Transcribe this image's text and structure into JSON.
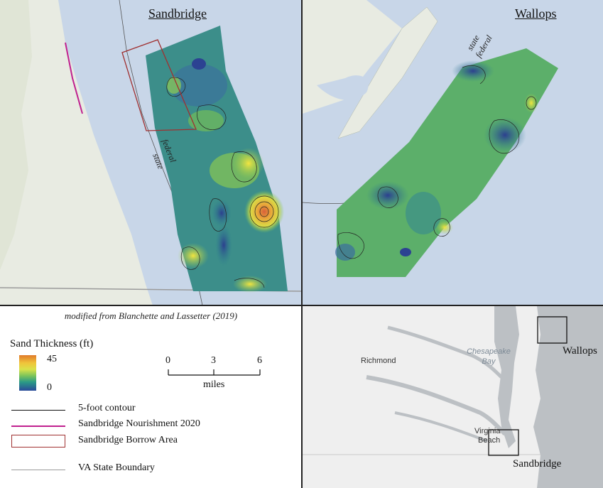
{
  "sandbridge_panel": {
    "title": "Sandbridge",
    "label_state": "state",
    "label_federal": "federal"
  },
  "wallops_panel": {
    "title": "Wallops",
    "label_state": "state",
    "label_federal": "federal"
  },
  "citation": "modified from Blanchette and Lassetter (2019)",
  "legend": {
    "ramp_title": "Sand Thickness (ft)",
    "ramp_max": "45",
    "ramp_min": "0",
    "scale_ticks": [
      "0",
      "3",
      "6"
    ],
    "scale_unit": "miles",
    "items": [
      {
        "label": "5-foot contour",
        "color": "#111111"
      },
      {
        "label": "Sandbridge Nourishment 2020",
        "color": "#c0218f"
      },
      {
        "label": "Sandbridge Borrow Area",
        "color": "#a03030"
      },
      {
        "label": "VA State Boundary",
        "color": "#9a9a9a"
      }
    ]
  },
  "locator_map": {
    "richmond": "Richmond",
    "chesapeake": "Chesapeake",
    "bay": "Bay",
    "virginia": "Virginia",
    "beach": "Beach",
    "wallops": "Wallops",
    "sandbridge": "Sandbridge"
  },
  "colors": {
    "water": "#c8d6e8",
    "land": "#e9ebe4",
    "locator_land": "#efefef",
    "locator_water": "#bcc0c4"
  }
}
